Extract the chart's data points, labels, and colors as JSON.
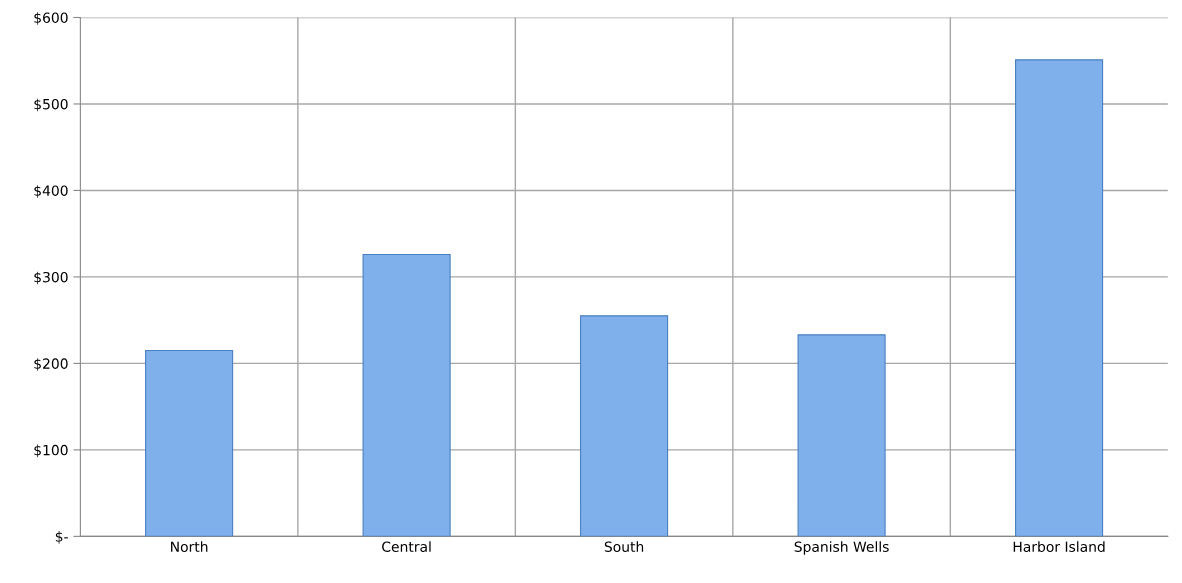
{
  "chart_data": {
    "type": "bar",
    "categories": [
      "North",
      "Central",
      "South",
      "Spanish Wells",
      "Harbor Island"
    ],
    "values": [
      215,
      326,
      255,
      233,
      551
    ],
    "color": "#7fb0ec",
    "ylim": [
      0,
      600
    ],
    "yticks": [
      {
        "value": 0,
        "label": "$-"
      },
      {
        "value": 100,
        "label": "$100"
      },
      {
        "value": 200,
        "label": "$200"
      },
      {
        "value": 300,
        "label": "$300"
      },
      {
        "value": 400,
        "label": "$400"
      },
      {
        "value": 500,
        "label": "$500"
      },
      {
        "value": 600,
        "label": "$600"
      }
    ],
    "grid": true
  }
}
